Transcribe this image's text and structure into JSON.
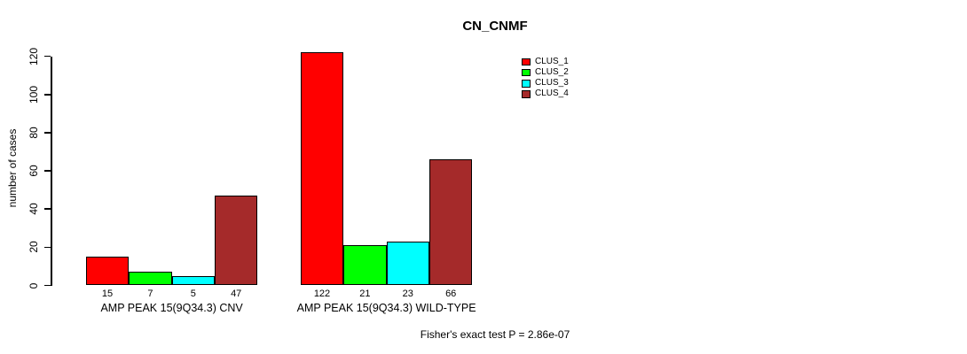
{
  "chart_data": {
    "type": "bar",
    "title": "CN_CNMF",
    "ylabel": "number of cases",
    "xlabel": "",
    "ylim": [
      0,
      120
    ],
    "yticks": [
      0,
      20,
      40,
      60,
      80,
      100,
      120
    ],
    "grid": false,
    "legend_position": "top-right-inside",
    "categories": [
      "AMP PEAK 15(9Q34.3) CNV",
      "AMP PEAK 15(9Q34.3) WILD-TYPE"
    ],
    "series": [
      {
        "name": "CLUS_1",
        "color": "#FF0000",
        "values": [
          15,
          122
        ]
      },
      {
        "name": "CLUS_2",
        "color": "#00FF00",
        "values": [
          7,
          21
        ]
      },
      {
        "name": "CLUS_3",
        "color": "#00FFFF",
        "values": [
          5,
          23
        ]
      },
      {
        "name": "CLUS_4",
        "color": "#A52A2A",
        "values": [
          47,
          66
        ]
      }
    ],
    "bar_value_labels": [
      [
        15,
        7,
        5,
        47
      ],
      [
        122,
        21,
        23,
        66
      ]
    ],
    "footnote": "Fisher's exact test P = 2.86e-07",
    "colors": {
      "axis": "#000000",
      "bar_border": "#000000",
      "background": "#FFFFFF"
    }
  }
}
